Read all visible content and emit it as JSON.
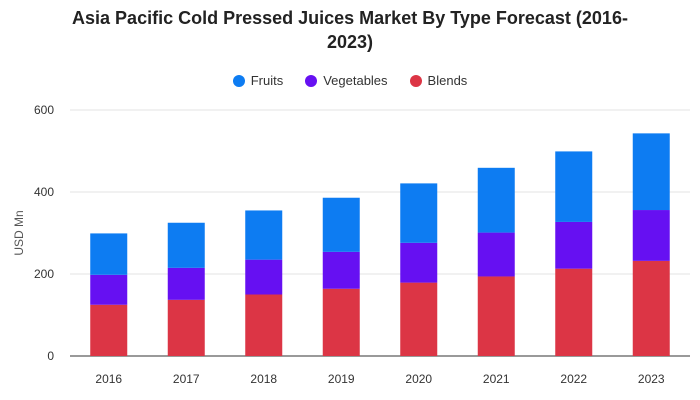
{
  "chart_data": {
    "type": "bar",
    "stacked": true,
    "title_line1": "Asia Pacific Cold Pressed Juices Market By Type Forecast (2016-",
    "title_line2": "2023)",
    "ylabel": "USD Mn",
    "xlabel": "",
    "ylim": [
      0,
      600
    ],
    "yticks": [
      0,
      200,
      400,
      600
    ],
    "grid": true,
    "legend_position": "top-center",
    "categories": [
      "2016",
      "2017",
      "2018",
      "2019",
      "2020",
      "2021",
      "2022",
      "2023"
    ],
    "series": [
      {
        "name": "Blends",
        "color": "#dc3545",
        "values": [
          125,
          137,
          150,
          164,
          179,
          194,
          213,
          232
        ]
      },
      {
        "name": "Vegetables",
        "color": "#6610f2",
        "values": [
          73,
          78,
          85,
          90,
          97,
          107,
          114,
          124
        ]
      },
      {
        "name": "Fruits",
        "color": "#0d7cf2",
        "values": [
          101,
          110,
          120,
          132,
          145,
          158,
          172,
          187
        ]
      }
    ]
  },
  "legend": {
    "fruits": "Fruits",
    "vegetables": "Vegetables",
    "blends": "Blends"
  }
}
